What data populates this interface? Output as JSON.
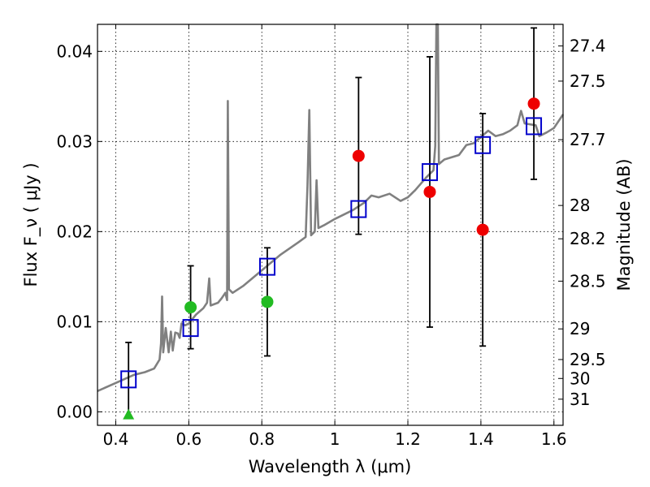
{
  "chart_data": {
    "type": "scatter",
    "xlabel": "Wavelength  λ (μm)",
    "ylabel": "Flux  F_ν  ( μJy )",
    "ylabel_right": "Magnitude (AB)",
    "xlim": [
      0.35,
      1.625
    ],
    "ylim": [
      -0.0015,
      0.043
    ],
    "grid": true,
    "x_ticks": [
      0.4,
      0.6,
      0.8,
      1.0,
      1.2,
      1.4,
      1.6
    ],
    "x_tick_labels": [
      "0.4",
      "0.6",
      "0.8",
      "1",
      "1.2",
      "1.4",
      "1.6"
    ],
    "y_ticks": [
      0.0,
      0.01,
      0.02,
      0.03,
      0.04
    ],
    "y_tick_labels": [
      "0.00",
      "0.01",
      "0.02",
      "0.03",
      "0.04"
    ],
    "right_ticks": [
      {
        "label": "27.4",
        "flux": 0.0406
      },
      {
        "label": "27.5",
        "flux": 0.0367
      },
      {
        "label": "27.7",
        "flux": 0.0302
      },
      {
        "label": "28",
        "flux": 0.0229
      },
      {
        "label": "28.2",
        "flux": 0.0192
      },
      {
        "label": "28.5",
        "flux": 0.0145
      },
      {
        "label": "29",
        "flux": 0.0092
      },
      {
        "label": "29.5",
        "flux": 0.0058
      },
      {
        "label": "30",
        "flux": 0.0037
      },
      {
        "label": "31",
        "flux": 0.0014
      }
    ],
    "model_sed": {
      "color": "#808080",
      "points": [
        [
          0.35,
          0.0023
        ],
        [
          0.4,
          0.0032
        ],
        [
          0.45,
          0.0041
        ],
        [
          0.48,
          0.0044
        ],
        [
          0.505,
          0.0048
        ],
        [
          0.52,
          0.0058
        ],
        [
          0.524,
          0.0076
        ],
        [
          0.527,
          0.0128
        ],
        [
          0.53,
          0.0066
        ],
        [
          0.537,
          0.0093
        ],
        [
          0.545,
          0.0066
        ],
        [
          0.551,
          0.0089
        ],
        [
          0.556,
          0.0068
        ],
        [
          0.563,
          0.0088
        ],
        [
          0.57,
          0.0087
        ],
        [
          0.575,
          0.0082
        ],
        [
          0.58,
          0.0098
        ],
        [
          0.59,
          0.0096
        ],
        [
          0.6,
          0.0098
        ],
        [
          0.61,
          0.0103
        ],
        [
          0.62,
          0.0108
        ],
        [
          0.64,
          0.0115
        ],
        [
          0.65,
          0.0121
        ],
        [
          0.656,
          0.0148
        ],
        [
          0.66,
          0.0118
        ],
        [
          0.68,
          0.0121
        ],
        [
          0.69,
          0.0126
        ],
        [
          0.7,
          0.0132
        ],
        [
          0.705,
          0.0124
        ],
        [
          0.707,
          0.0345
        ],
        [
          0.71,
          0.0136
        ],
        [
          0.72,
          0.0132
        ],
        [
          0.75,
          0.014
        ],
        [
          0.8,
          0.0157
        ],
        [
          0.85,
          0.0174
        ],
        [
          0.9,
          0.0188
        ],
        [
          0.92,
          0.0194
        ],
        [
          0.925,
          0.025
        ],
        [
          0.93,
          0.0335
        ],
        [
          0.935,
          0.0196
        ],
        [
          0.945,
          0.02
        ],
        [
          0.95,
          0.0257
        ],
        [
          0.955,
          0.0204
        ],
        [
          0.97,
          0.0207
        ],
        [
          1.0,
          0.0214
        ],
        [
          1.05,
          0.0224
        ],
        [
          1.08,
          0.0232
        ],
        [
          1.1,
          0.024
        ],
        [
          1.12,
          0.0238
        ],
        [
          1.15,
          0.0242
        ],
        [
          1.18,
          0.0234
        ],
        [
          1.2,
          0.0238
        ],
        [
          1.22,
          0.0246
        ],
        [
          1.25,
          0.026
        ],
        [
          1.27,
          0.0268
        ],
        [
          1.275,
          0.0295
        ],
        [
          1.278,
          0.043
        ],
        [
          1.282,
          0.043
        ],
        [
          1.285,
          0.0275
        ],
        [
          1.3,
          0.028
        ],
        [
          1.34,
          0.0285
        ],
        [
          1.36,
          0.0296
        ],
        [
          1.38,
          0.0298
        ],
        [
          1.4,
          0.0305
        ],
        [
          1.42,
          0.0312
        ],
        [
          1.44,
          0.0306
        ],
        [
          1.46,
          0.0308
        ],
        [
          1.48,
          0.0312
        ],
        [
          1.5,
          0.0318
        ],
        [
          1.51,
          0.0334
        ],
        [
          1.52,
          0.032
        ],
        [
          1.55,
          0.0318
        ],
        [
          1.56,
          0.0306
        ],
        [
          1.58,
          0.031
        ],
        [
          1.6,
          0.0315
        ],
        [
          1.625,
          0.033
        ]
      ]
    },
    "series": [
      {
        "marker": "square",
        "color": "#0000cc",
        "points": [
          {
            "x": 0.435,
            "y": 0.0036
          },
          {
            "x": 0.605,
            "y": 0.0093
          },
          {
            "x": 0.815,
            "y": 0.0161
          },
          {
            "x": 1.065,
            "y": 0.0225
          },
          {
            "x": 1.26,
            "y": 0.0266
          },
          {
            "x": 1.405,
            "y": 0.0296
          },
          {
            "x": 1.545,
            "y": 0.0317
          }
        ]
      },
      {
        "marker": "circle",
        "color": "#22bb22",
        "points": [
          {
            "x": 0.605,
            "y": 0.0116,
            "yerr": 0.0046
          },
          {
            "x": 0.815,
            "y": 0.0122,
            "yerr": 0.006
          }
        ]
      },
      {
        "marker": "triangle",
        "color": "#22bb22",
        "points": [
          {
            "x": 0.435,
            "y": -0.0003,
            "yerr_up": 0.008
          }
        ]
      },
      {
        "marker": "circle",
        "color": "#ee0000",
        "points": [
          {
            "x": 1.065,
            "y": 0.0284,
            "yerr": 0.0087
          },
          {
            "x": 1.26,
            "y": 0.0244,
            "yerr": 0.015
          },
          {
            "x": 1.405,
            "y": 0.0202,
            "yerr": 0.0129
          },
          {
            "x": 1.545,
            "y": 0.0342,
            "yerr": 0.0084
          }
        ]
      }
    ]
  }
}
